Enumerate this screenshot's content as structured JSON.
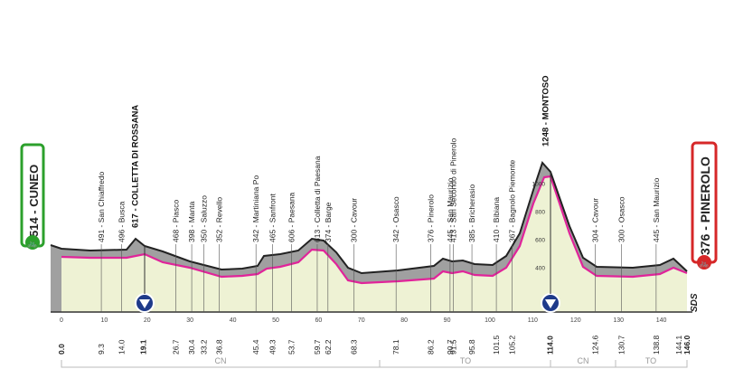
{
  "start": {
    "name": "CUNEO",
    "alt": "514",
    "label": "514 - CUNEO",
    "km": "0.0"
  },
  "finish": {
    "name": "PINEROLO",
    "alt": "376",
    "label": "376 - PINEROLO",
    "km": "146.0"
  },
  "summits": [
    {
      "label": "617 - COLLETTA DI ROSSANA",
      "km": "19.1",
      "alt": 617
    },
    {
      "label": "1248 - MONTOSO",
      "km": "114.0",
      "alt": 1248
    }
  ],
  "waypoints": [
    {
      "label": "491 - San Chiaffredo",
      "km": "9.3"
    },
    {
      "label": "496 - Busca",
      "km": "14.0"
    },
    {
      "label": "468 - Piasco",
      "km": "26.7"
    },
    {
      "label": "398 - Manta",
      "km": "30.4"
    },
    {
      "label": "350 - Saluzzo",
      "km": "33.2"
    },
    {
      "label": "352 - Revello",
      "km": "36.8"
    },
    {
      "label": "342 - Martiniana Po",
      "km": "45.4"
    },
    {
      "label": "465 - Sanfront",
      "km": "49.3"
    },
    {
      "label": "606 - Paesana",
      "km": "53.7"
    },
    {
      "label": "613 - Colletta di Paesana",
      "km": "59.7"
    },
    {
      "label": "374 - Barge",
      "km": "62.2"
    },
    {
      "label": "300 - Cavour",
      "km": "68.3"
    },
    {
      "label": "342 - Osasco",
      "km": "78.1"
    },
    {
      "label": "376 - Pinerolo",
      "km": "86.2"
    },
    {
      "label": "445 - San Maurizio",
      "km": "90.7"
    },
    {
      "label": "413 - San Secondo di Pinerolo",
      "km": "91.5"
    },
    {
      "label": "385 - Bricherasio",
      "km": "95.8"
    },
    {
      "label": "410 - Bibiana",
      "km": "101.5"
    },
    {
      "label": "367 - Bagnolo Piemonte",
      "km": "105.2"
    },
    {
      "label": "304 - Cavour",
      "km": "124.6"
    },
    {
      "label": "300 - Osasco",
      "km": "130.7"
    },
    {
      "label": "445 - San Maurizio",
      "km": "138.8"
    }
  ],
  "distance_axis": {
    "ticks": [
      "0",
      "10",
      "20",
      "30",
      "40",
      "50",
      "60",
      "70",
      "80",
      "90",
      "100",
      "110",
      "120",
      "130",
      "140"
    ],
    "km_labels": [
      "0.0",
      "9.3",
      "14.0",
      "19.1",
      "26.7",
      "30.4",
      "33.2",
      "36.8",
      "45.4",
      "49.3",
      "53.7",
      "59.7",
      "62.2",
      "68.3",
      "78.1",
      "86.2",
      "90.7",
      "91.5",
      "95.8",
      "101.5",
      "105.2",
      "114.0",
      "124.6",
      "130.7",
      "138.8",
      "144.1",
      "146.0"
    ]
  },
  "altitude_axis": {
    "ticks": [
      "1000",
      "800",
      "600",
      "400"
    ]
  },
  "provinces": [
    "CN",
    "TO",
    "CN",
    "TO"
  ],
  "finish_marker": "SDS",
  "colors": {
    "start": "#2ca02c",
    "finish": "#d62728",
    "route": "#e0249a",
    "profile_fill": "#eef2d4",
    "climb_fill": "#9a9a9a",
    "sky_bar": "#333333",
    "marker": "#1e3a8a"
  }
}
